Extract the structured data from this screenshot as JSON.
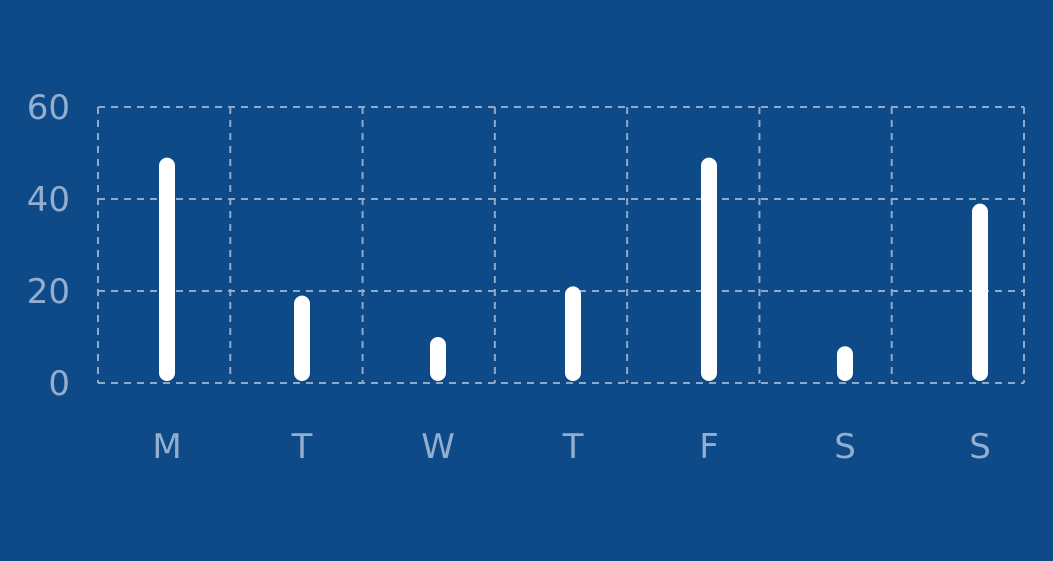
{
  "colors": {
    "background": "#0e4a87",
    "bar": "#ffffff",
    "grid": "#8fa9c9",
    "label": "#93aecf"
  },
  "chart_data": {
    "type": "bar",
    "categories": [
      "M",
      "T",
      "W",
      "T",
      "F",
      "S",
      "S"
    ],
    "series": [
      {
        "values": [
          49,
          19,
          10,
          21,
          49,
          8,
          39
        ]
      }
    ],
    "yticks": [
      "0",
      "20",
      "40",
      "60"
    ],
    "ylim": [
      0,
      60
    ],
    "grid": true,
    "grid_style": "dashed",
    "legend": "none"
  }
}
